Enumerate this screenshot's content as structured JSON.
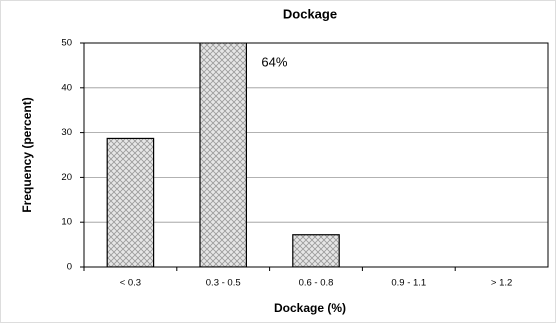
{
  "chart_data": {
    "type": "bar",
    "title": "Dockage",
    "x_label": "Dockage (%)",
    "y_label": "Frequency (percent)",
    "categories": [
      "< 0.3",
      "0.3 - 0.5",
      "0.6 - 0.8",
      "0.9 - 1.1",
      "> 1.2"
    ],
    "values": [
      28.7,
      64,
      7.2,
      0,
      0
    ],
    "value_labels": [
      null,
      "64%",
      null,
      null,
      null
    ],
    "color": "url(#hatch)",
    "ylim": [
      0,
      50
    ],
    "yticks": [
      0,
      10,
      20,
      30,
      40,
      50
    ],
    "grid": true
  }
}
